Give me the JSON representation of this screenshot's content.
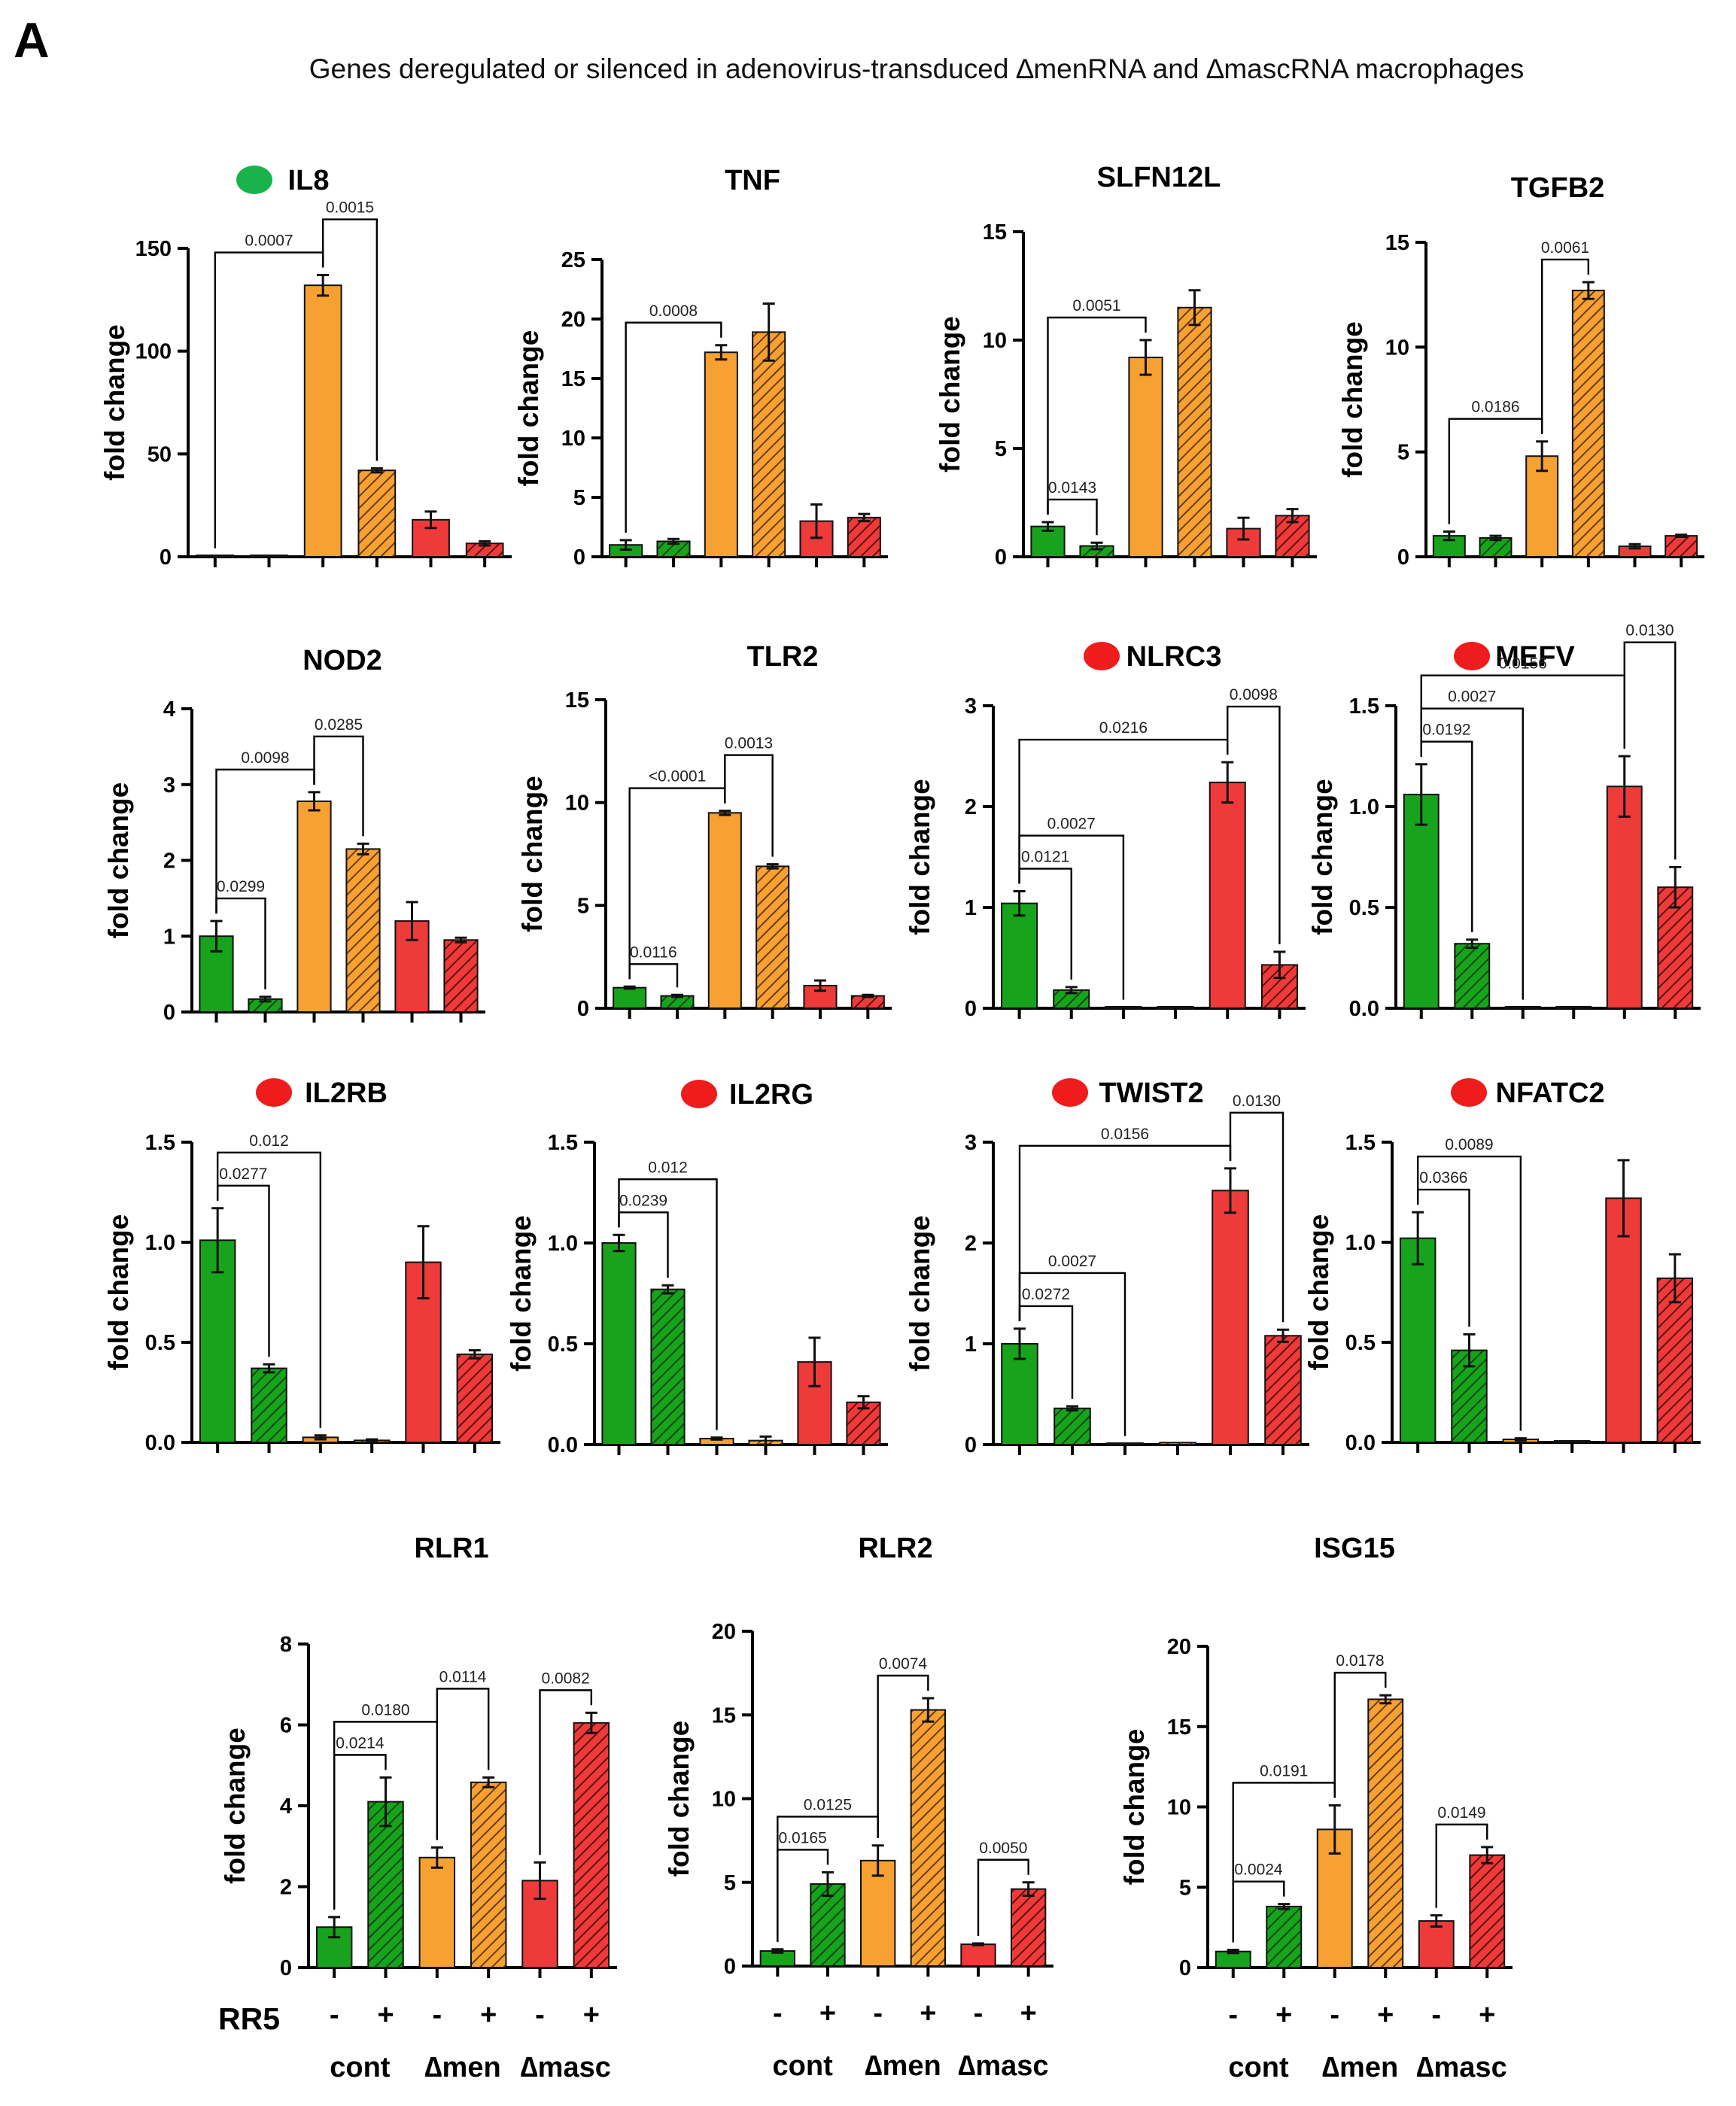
{
  "panel_letter": "A",
  "figure_title": "Genes deregulated or silenced in adenovirus-transduced ∆menRNA and ∆mascRNA macrophages",
  "ylabel": "fold change",
  "colors": {
    "green": "#17a31b",
    "orange": "#f7a132",
    "red": "#ef3a3a",
    "marker_green": "#19b34b",
    "marker_red": "#ee1c1c"
  },
  "bottom_labels": {
    "rr_label": "RR5",
    "signs": [
      "-",
      "+",
      "-",
      "+",
      "-",
      "+"
    ],
    "groups": [
      "cont",
      "∆men",
      "∆masc"
    ]
  },
  "chart_data": [
    {
      "type": "bar",
      "title": "IL8",
      "marker": "green",
      "ylim": [
        0,
        150
      ],
      "yticks": [
        "0",
        "50",
        "100",
        "150"
      ],
      "series": [
        {
          "values": [
            0.5,
            0.2,
            132,
            42,
            18,
            6.5
          ],
          "errors": [
            0,
            0,
            5,
            1,
            4,
            1
          ]
        }
      ],
      "annotations": [
        {
          "from": 0,
          "to": 2,
          "label": "0.0007"
        },
        {
          "from": 2,
          "to": 3,
          "label": "0.0015"
        }
      ]
    },
    {
      "type": "bar",
      "title": "TNF",
      "marker": null,
      "ylim": [
        0,
        25
      ],
      "yticks": [
        "0",
        "5",
        "10",
        "15",
        "20",
        "25"
      ],
      "series": [
        {
          "values": [
            1.0,
            1.3,
            17.2,
            18.9,
            3.0,
            3.3
          ],
          "errors": [
            0.4,
            0.2,
            0.6,
            2.4,
            1.4,
            0.3
          ]
        }
      ],
      "annotations": [
        {
          "from": 0,
          "to": 2,
          "label": "0.0008"
        }
      ]
    },
    {
      "type": "bar",
      "title": "SLFN12L",
      "marker": null,
      "ylim": [
        0,
        15
      ],
      "yticks": [
        "0",
        "5",
        "10",
        "15"
      ],
      "series": [
        {
          "values": [
            1.4,
            0.5,
            9.2,
            11.5,
            1.3,
            1.9
          ],
          "errors": [
            0.2,
            0.15,
            0.8,
            0.8,
            0.5,
            0.3
          ]
        }
      ],
      "annotations": [
        {
          "from": 0,
          "to": 1,
          "label": "0.0143"
        },
        {
          "from": 0,
          "to": 2,
          "label": "0.0051"
        }
      ]
    },
    {
      "type": "bar",
      "title": "TGFB2",
      "marker": null,
      "ylim": [
        0,
        15
      ],
      "yticks": [
        "0",
        "5",
        "10",
        "15"
      ],
      "series": [
        {
          "values": [
            1.0,
            0.9,
            4.8,
            12.7,
            0.5,
            1.0
          ],
          "errors": [
            0.2,
            0.1,
            0.7,
            0.4,
            0.1,
            0.05
          ]
        }
      ],
      "annotations": [
        {
          "from": 0,
          "to": 2,
          "label": "0.0186"
        },
        {
          "from": 2,
          "to": 3,
          "label": "0.0061"
        }
      ]
    },
    {
      "type": "bar",
      "title": "NOD2",
      "marker": null,
      "ylim": [
        0,
        4
      ],
      "yticks": [
        "0",
        "1",
        "2",
        "3",
        "4"
      ],
      "series": [
        {
          "values": [
            1.0,
            0.17,
            2.78,
            2.15,
            1.2,
            0.95
          ],
          "errors": [
            0.2,
            0.03,
            0.12,
            0.07,
            0.25,
            0.03
          ]
        }
      ],
      "annotations": [
        {
          "from": 0,
          "to": 1,
          "label": "0.0299"
        },
        {
          "from": 0,
          "to": 2,
          "label": "0.0098"
        },
        {
          "from": 2,
          "to": 3,
          "label": "0.0285"
        }
      ]
    },
    {
      "type": "bar",
      "title": "TLR2",
      "marker": null,
      "ylim": [
        0,
        15
      ],
      "yticks": [
        "0",
        "5",
        "10",
        "15"
      ],
      "series": [
        {
          "values": [
            1.0,
            0.6,
            9.5,
            6.9,
            1.1,
            0.6
          ],
          "errors": [
            0.05,
            0.05,
            0.1,
            0.1,
            0.25,
            0.05
          ]
        }
      ],
      "annotations": [
        {
          "from": 0,
          "to": 1,
          "label": "0.0116"
        },
        {
          "from": 0,
          "to": 2,
          "label": "<0.0001"
        },
        {
          "from": 2,
          "to": 3,
          "label": "0.0013"
        }
      ]
    },
    {
      "type": "bar",
      "title": "NLRC3",
      "marker": "red",
      "ylim": [
        0,
        3
      ],
      "yticks": [
        "0",
        "1",
        "2",
        "3"
      ],
      "series": [
        {
          "values": [
            1.04,
            0.18,
            0.01,
            0.01,
            2.24,
            0.43
          ],
          "errors": [
            0.12,
            0.03,
            0,
            0,
            0.2,
            0.13
          ]
        }
      ],
      "annotations": [
        {
          "from": 0,
          "to": 1,
          "label": "0.0121"
        },
        {
          "from": 0,
          "to": 2,
          "label": "0.0027"
        },
        {
          "from": 0,
          "to": 4,
          "label": "0.0216"
        },
        {
          "from": 4,
          "to": 5,
          "label": "0.0098"
        }
      ]
    },
    {
      "type": "bar",
      "title": "MEFV",
      "marker": "red",
      "ylim": [
        0,
        1.5
      ],
      "yticks": [
        "0.0",
        "0.5",
        "1.0",
        "1.5"
      ],
      "series": [
        {
          "values": [
            1.06,
            0.32,
            0.005,
            0.005,
            1.1,
            0.6
          ],
          "errors": [
            0.15,
            0.02,
            0,
            0,
            0.15,
            0.1
          ]
        }
      ],
      "annotations": [
        {
          "from": 0,
          "to": 1,
          "label": "0.0192"
        },
        {
          "from": 0,
          "to": 2,
          "label": "0.0027"
        },
        {
          "from": 0,
          "to": 4,
          "label": "0.0156"
        },
        {
          "from": 4,
          "to": 5,
          "label": "0.0130"
        }
      ]
    },
    {
      "type": "bar",
      "title": "IL2RB",
      "marker": "red",
      "ylim": [
        0,
        1.5
      ],
      "yticks": [
        "0.0",
        "0.5",
        "1.0",
        "1.5"
      ],
      "series": [
        {
          "values": [
            1.01,
            0.37,
            0.025,
            0.01,
            0.9,
            0.44
          ],
          "errors": [
            0.16,
            0.02,
            0.01,
            0.005,
            0.18,
            0.02
          ]
        }
      ],
      "annotations": [
        {
          "from": 0,
          "to": 1,
          "label": "0.0277"
        },
        {
          "from": 0,
          "to": 2,
          "label": "0.012"
        }
      ]
    },
    {
      "type": "bar",
      "title": "IL2RG",
      "marker": "red",
      "ylim": [
        0,
        1.5
      ],
      "yticks": [
        "0.0",
        "0.5",
        "1.0",
        "1.5"
      ],
      "series": [
        {
          "values": [
            1.0,
            0.77,
            0.03,
            0.02,
            0.41,
            0.21
          ],
          "errors": [
            0.04,
            0.02,
            0.005,
            0.02,
            0.12,
            0.03
          ]
        }
      ],
      "annotations": [
        {
          "from": 0,
          "to": 1,
          "label": "0.0239"
        },
        {
          "from": 0,
          "to": 2,
          "label": "0.012"
        }
      ]
    },
    {
      "type": "bar",
      "title": "TWIST2",
      "marker": "red",
      "ylim": [
        0,
        3
      ],
      "yticks": [
        "0",
        "1",
        "2",
        "3"
      ],
      "series": [
        {
          "values": [
            1.0,
            0.36,
            0.01,
            0.02,
            2.52,
            1.08
          ],
          "errors": [
            0.15,
            0.02,
            0,
            0,
            0.22,
            0.06
          ]
        }
      ],
      "annotations": [
        {
          "from": 0,
          "to": 1,
          "label": "0.0272"
        },
        {
          "from": 0,
          "to": 2,
          "label": "0.0027"
        },
        {
          "from": 0,
          "to": 4,
          "label": "0.0156"
        },
        {
          "from": 4,
          "to": 5,
          "label": "0.0130"
        }
      ]
    },
    {
      "type": "bar",
      "title": "NFATC2",
      "marker": "red",
      "ylim": [
        0,
        1.5
      ],
      "yticks": [
        "0.0",
        "0.5",
        "1.0",
        "1.5"
      ],
      "series": [
        {
          "values": [
            1.02,
            0.46,
            0.015,
            0.005,
            1.22,
            0.82
          ],
          "errors": [
            0.13,
            0.08,
            0.005,
            0,
            0.19,
            0.12
          ]
        }
      ],
      "annotations": [
        {
          "from": 0,
          "to": 1,
          "label": "0.0366"
        },
        {
          "from": 0,
          "to": 2,
          "label": "0.0089"
        }
      ]
    },
    {
      "type": "bar",
      "title": "RLR1",
      "marker": null,
      "ylim": [
        0,
        8
      ],
      "yticks": [
        "0",
        "2",
        "4",
        "6",
        "8"
      ],
      "series": [
        {
          "values": [
            1.0,
            4.1,
            2.72,
            4.58,
            2.15,
            6.05
          ],
          "errors": [
            0.25,
            0.6,
            0.25,
            0.12,
            0.45,
            0.25
          ]
        }
      ],
      "annotations": [
        {
          "from": 0,
          "to": 1,
          "label": "0.0214"
        },
        {
          "from": 0,
          "to": 2,
          "label": "0.0180"
        },
        {
          "from": 2,
          "to": 3,
          "label": "0.0114"
        },
        {
          "from": 4,
          "to": 5,
          "label": "0.0082"
        }
      ]
    },
    {
      "type": "bar",
      "title": "RLR2",
      "marker": null,
      "ylim": [
        0,
        20
      ],
      "yticks": [
        "0",
        "5",
        "10",
        "15",
        "20"
      ],
      "series": [
        {
          "values": [
            0.9,
            4.9,
            6.3,
            15.3,
            1.3,
            4.6
          ],
          "errors": [
            0.1,
            0.7,
            0.9,
            0.7,
            0.05,
            0.4
          ]
        }
      ],
      "annotations": [
        {
          "from": 0,
          "to": 1,
          "label": "0.0165"
        },
        {
          "from": 0,
          "to": 2,
          "label": "0.0125"
        },
        {
          "from": 2,
          "to": 3,
          "label": "0.0074"
        },
        {
          "from": 4,
          "to": 5,
          "label": "0.0050"
        }
      ]
    },
    {
      "type": "bar",
      "title": "ISG15",
      "marker": null,
      "ylim": [
        0,
        20
      ],
      "yticks": [
        "0",
        "5",
        "10",
        "15",
        "20"
      ],
      "series": [
        {
          "values": [
            1.0,
            3.8,
            8.6,
            16.7,
            2.9,
            7.0
          ],
          "errors": [
            0.1,
            0.15,
            1.5,
            0.25,
            0.35,
            0.5
          ]
        }
      ],
      "annotations": [
        {
          "from": 0,
          "to": 1,
          "label": "0.0024"
        },
        {
          "from": 0,
          "to": 2,
          "label": "0.0191"
        },
        {
          "from": 2,
          "to": 3,
          "label": "0.0178"
        },
        {
          "from": 4,
          "to": 5,
          "label": "0.0149"
        }
      ]
    }
  ]
}
